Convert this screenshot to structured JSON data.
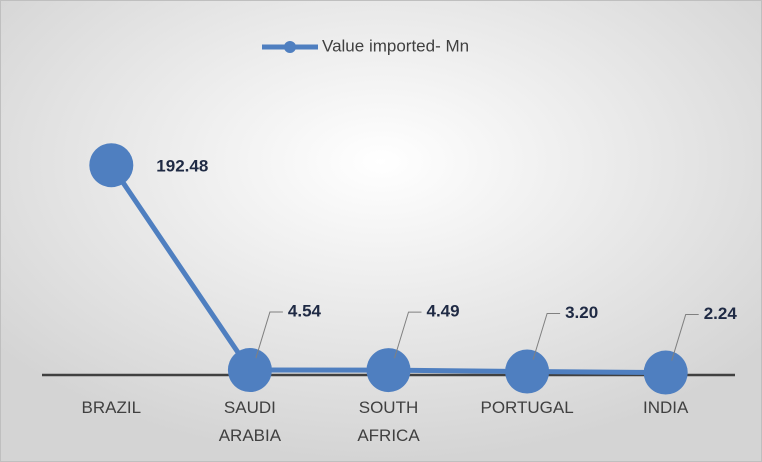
{
  "chart_data": {
    "type": "line",
    "categories": [
      "BRAZIL",
      "SAUDI ARABIA",
      "SOUTH AFRICA",
      "PORTUGAL",
      "INDIA"
    ],
    "series": [
      {
        "name": "Value imported- Mn",
        "color": "#4f7fc0",
        "values": [
          192.48,
          4.54,
          4.49,
          3.2,
          2.24
        ],
        "value_labels": [
          "192.48",
          "4.54",
          "4.49",
          "3.20",
          "2.24"
        ]
      }
    ],
    "ylim": [
      0,
      200
    ],
    "legend": "top"
  }
}
